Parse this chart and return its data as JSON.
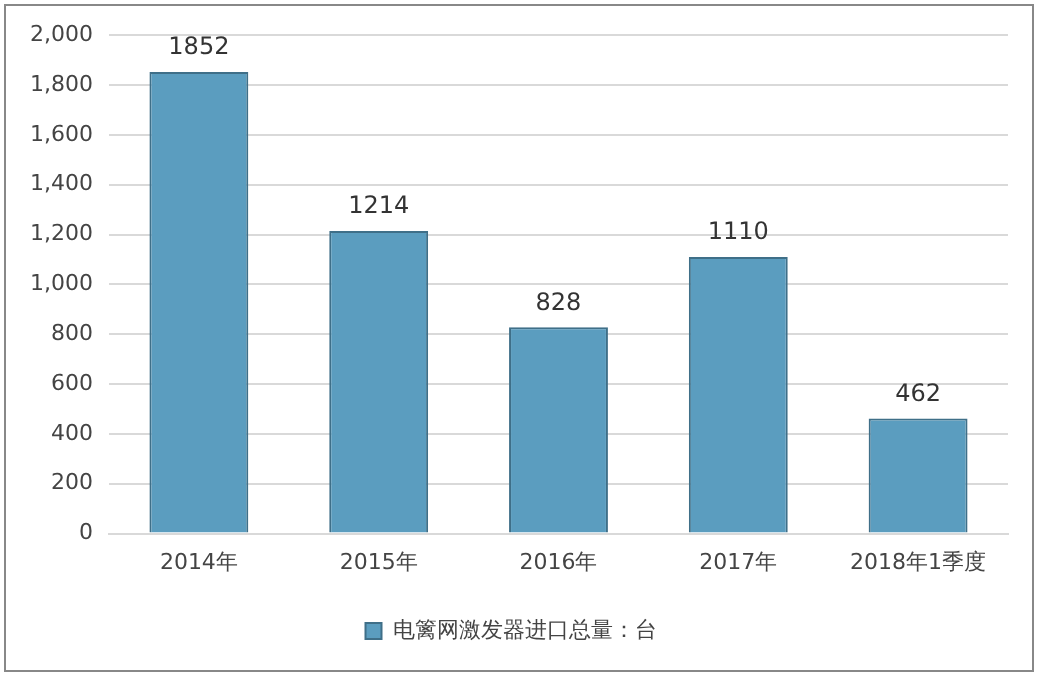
{
  "chart_data": {
    "type": "bar",
    "categories": [
      "2014年",
      "2015年",
      "2016年",
      "2017年",
      "2018年1季度"
    ],
    "series": [
      {
        "name": "电篱网激发器进口总量：台",
        "color": "#5b9dbf",
        "values": [
          1852,
          1214,
          828,
          1110,
          462
        ]
      }
    ],
    "ylim": [
      0,
      2000
    ],
    "yticks": [
      0,
      200,
      400,
      600,
      800,
      {
        "value": 1000,
        "label": "1,000"
      },
      {
        "value": 1200,
        "label": "1,200"
      },
      {
        "value": 1400,
        "label": "1,400"
      },
      {
        "value": 1600,
        "label": "1,600"
      },
      {
        "value": 1800,
        "label": "1,800"
      },
      {
        "value": 2000,
        "label": "2,000"
      }
    ],
    "grid": "y",
    "legend": "bottom",
    "data_labels": true
  }
}
